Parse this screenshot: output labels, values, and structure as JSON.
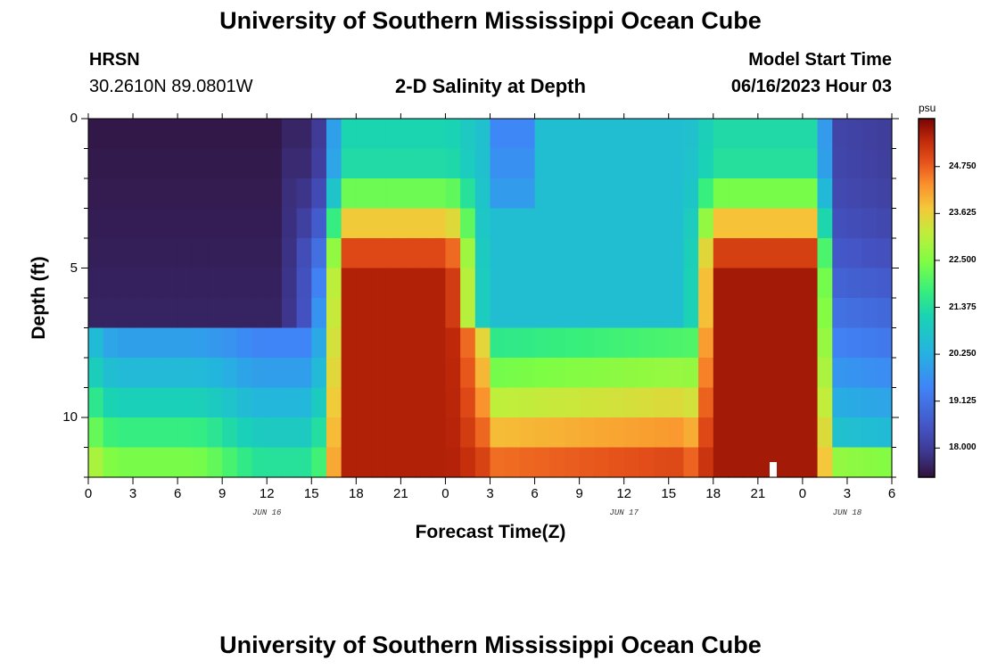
{
  "header": {
    "title": "University of Southern Mississippi Ocean Cube",
    "station": "HRSN",
    "coords": "30.2610N  89.0801W",
    "plot_title": "2-D Salinity at Depth",
    "model_start_label": "Model Start Time",
    "model_start_value": "06/16/2023 Hour 03"
  },
  "footer": {
    "title": "University of Southern Mississippi Ocean Cube"
  },
  "chart_data": {
    "type": "heatmap",
    "title": "2-D Salinity at Depth",
    "xlabel": "Forecast Time(Z)",
    "ylabel": "Depth (ft)",
    "x_ticks": [
      "0",
      "3",
      "6",
      "9",
      "12",
      "15",
      "18",
      "21",
      "0",
      "3",
      "6",
      "9",
      "12",
      "15",
      "18",
      "21",
      "0",
      "3",
      "6"
    ],
    "x_range_hours": [
      0,
      54
    ],
    "date_labels": [
      {
        "text": "JUN 16",
        "hour": 12
      },
      {
        "text": "JUN 17",
        "hour": 36
      },
      {
        "text": "JUN 18",
        "hour": 51
      }
    ],
    "y_ticks": [
      "0",
      "5",
      "10"
    ],
    "y_range_ft": [
      0,
      12
    ],
    "colorbar": {
      "unit": "psu",
      "min": 17.3,
      "max": 25.9,
      "ticks": [
        "18.000",
        "19.125",
        "20.250",
        "21.375",
        "22.500",
        "23.625",
        "24.750"
      ],
      "tick_values": [
        18.0,
        19.125,
        20.25,
        21.375,
        22.5,
        23.625,
        24.75
      ]
    },
    "pattern_notes": "Low salinity (~17.5 psu) upper layers hours 1-15 of Jun 16; high salinity core (~25.5 psu) hours 16-26 and 42-50 at depth; surface ~20.5 psu between."
  }
}
